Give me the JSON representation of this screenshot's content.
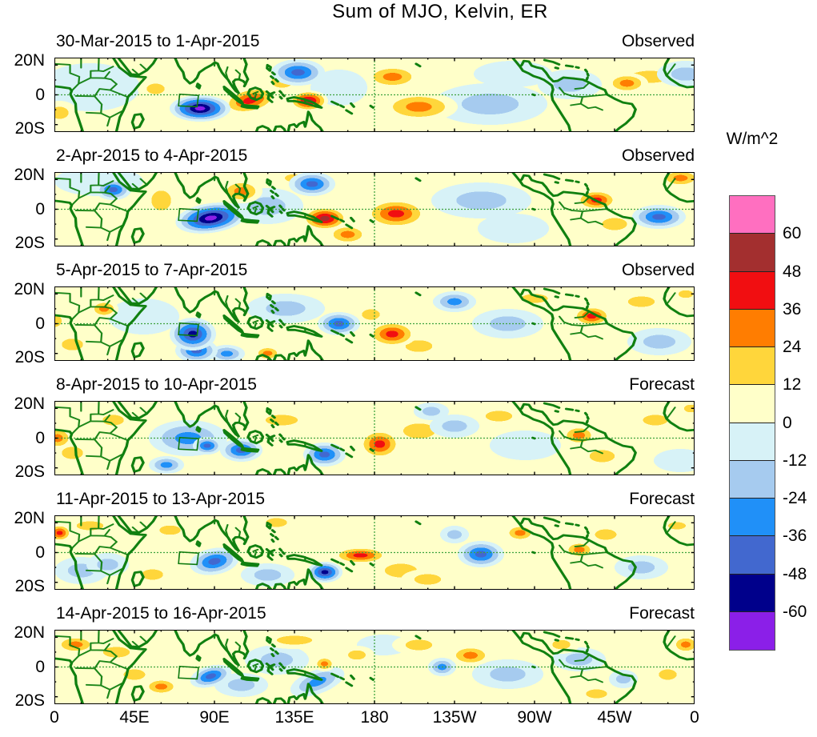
{
  "title": "Sum of MJO, Kelvin, ER",
  "colorbar": {
    "title": "W/m^2",
    "segment_colors": [
      "#FF6FC0",
      "#A32F2F",
      "#F10E11",
      "#FF7D01",
      "#FFD63B",
      "#FFFFC9",
      "#D7F2F7",
      "#A6CBEF",
      "#2090F8",
      "#4268CF",
      "#00008B",
      "#8B1FE8"
    ]
  },
  "colors": {
    "background": "#FFFFFF",
    "map_base": "#FFFFC9",
    "coastline": "#108010",
    "grid_green": "#3FA33F",
    "frame": "#000000",
    "positive_bands": [
      "#FFFFC9",
      "#FFD63B",
      "#FF7D01",
      "#F10E11",
      "#A32F2F",
      "#FF6FC0"
    ],
    "negative_bands": [
      "#D7F2F7",
      "#A6CBEF",
      "#2090F8",
      "#4268CF",
      "#00008B",
      "#8B1FE8"
    ]
  },
  "region_box": {
    "lon_min": 70.4,
    "lon_max": 81,
    "lat_min": -8,
    "lat_max": 0.4
  },
  "chart_data": {
    "type": "heatmap",
    "title": "Sum of MJO, Kelvin, ER",
    "units": "W/m^2",
    "contour_interval": 12,
    "value_range": [
      -60,
      60
    ],
    "colorbar_ticks": [
      "60",
      "48",
      "36",
      "24",
      "12",
      "0",
      "-12",
      "-24",
      "-36",
      "-48",
      "-60"
    ],
    "lon_domain": [
      0,
      360
    ],
    "lat_domain": [
      -25,
      25
    ],
    "x_tick_labels": [
      "0",
      "45E",
      "90E",
      "135E",
      "180",
      "135W",
      "90W",
      "45W",
      "0"
    ],
    "y_tick_labels": [
      "20N",
      "0",
      "20S"
    ],
    "equator_dashed": true,
    "dateline_dashed": true,
    "anomaly_fields": [
      "lon_deg_east",
      "lat_deg",
      "peak_wm2",
      "rx_deg",
      "ry_deg",
      "rotation_deg"
    ],
    "panels": [
      {
        "date_range": "30-Mar-2015 to 1-Apr-2015",
        "source": "Observed",
        "anomalies": [
          [
            20,
            5,
            -10,
            28,
            16,
            0
          ],
          [
            245,
            -6,
            -13,
            32,
            14,
            0
          ],
          [
            258,
            14,
            -10,
            22,
            9,
            0
          ],
          [
            160,
            5,
            -12,
            16,
            12,
            0
          ],
          [
            335,
            12,
            18,
            22,
            8,
            0
          ],
          [
            3,
            -12,
            16,
            10,
            8,
            0
          ],
          [
            57,
            4,
            15,
            10,
            7,
            0
          ],
          [
            128,
            9,
            20,
            12,
            8,
            0
          ],
          [
            190,
            12,
            30,
            16,
            8,
            0
          ],
          [
            205,
            -8,
            33,
            22,
            10,
            0
          ],
          [
            290,
            7,
            -17,
            18,
            10,
            0
          ],
          [
            355,
            14,
            -21,
            16,
            9,
            0
          ],
          [
            322,
            8,
            30,
            12,
            7,
            0
          ],
          [
            137,
            15,
            -45,
            15,
            9,
            0
          ],
          [
            110,
            -4,
            40,
            16,
            9,
            -12
          ],
          [
            82,
            -9,
            -68,
            17,
            9,
            0
          ],
          [
            143,
            -4,
            56,
            11,
            7,
            0
          ]
        ]
      },
      {
        "date_range": "2-Apr-2015 to 4-Apr-2015",
        "source": "Observed",
        "anomalies": [
          [
            25,
            19,
            -10,
            25,
            10,
            0
          ],
          [
            120,
            2,
            -18,
            20,
            12,
            0
          ],
          [
            240,
            6,
            -13,
            28,
            12,
            0
          ],
          [
            258,
            -13,
            -11,
            20,
            10,
            0
          ],
          [
            60,
            6,
            20,
            11,
            13,
            0
          ],
          [
            135,
            21,
            18,
            11,
            5,
            0
          ],
          [
            105,
            12,
            25,
            12,
            8,
            0
          ],
          [
            165,
            -17,
            28,
            12,
            7,
            0
          ],
          [
            315,
            -10,
            20,
            14,
            8,
            0
          ],
          [
            352,
            21,
            26,
            12,
            6,
            0
          ],
          [
            33,
            13,
            -38,
            10,
            7,
            0
          ],
          [
            145,
            17,
            -40,
            13,
            8,
            0
          ],
          [
            192,
            -3,
            38,
            18,
            10,
            0
          ],
          [
            340,
            -5,
            -40,
            15,
            8,
            0
          ],
          [
            305,
            6,
            42,
            12,
            7,
            0
          ],
          [
            88,
            -6,
            -70,
            20,
            10,
            -8
          ],
          [
            152,
            -6,
            52,
            13,
            8,
            0
          ]
        ]
      },
      {
        "date_range": "5-Apr-2015 to 7-Apr-2015",
        "source": "Observed",
        "anomalies": [
          [
            50,
            5,
            -12,
            20,
            12,
            0
          ],
          [
            130,
            10,
            -13,
            22,
            10,
            0
          ],
          [
            255,
            0,
            -14,
            20,
            10,
            0
          ],
          [
            340,
            -12,
            -16,
            18,
            9,
            0
          ],
          [
            10,
            -14,
            18,
            12,
            8,
            0
          ],
          [
            0,
            2,
            14,
            8,
            8,
            0
          ],
          [
            270,
            17,
            16,
            15,
            6,
            0
          ],
          [
            330,
            15,
            18,
            15,
            7,
            0
          ],
          [
            355,
            20,
            16,
            8,
            5,
            0
          ],
          [
            205,
            -15,
            18,
            15,
            8,
            0
          ],
          [
            178,
            6,
            24,
            10,
            7,
            0
          ],
          [
            28,
            10,
            26,
            8,
            6,
            0
          ],
          [
            120,
            -20,
            26,
            8,
            5,
            0
          ],
          [
            225,
            15,
            -28,
            12,
            7,
            0
          ],
          [
            97,
            -20,
            -30,
            10,
            6,
            0
          ],
          [
            80,
            -18,
            -38,
            12,
            8,
            0
          ],
          [
            160,
            0,
            -38,
            12,
            8,
            0
          ],
          [
            78,
            -7,
            -50,
            13,
            11,
            0
          ],
          [
            302,
            5,
            38,
            11,
            7,
            0
          ],
          [
            190,
            -7,
            42,
            14,
            9,
            0
          ]
        ]
      },
      {
        "date_range": "8-Apr-2015 to 10-Apr-2015",
        "source": "Forecast",
        "anomalies": [
          [
            75,
            0,
            -30,
            22,
            12,
            0
          ],
          [
            265,
            -5,
            -12,
            20,
            10,
            0
          ],
          [
            352,
            -15,
            -12,
            15,
            8,
            0
          ],
          [
            10,
            -10,
            18,
            12,
            8,
            0
          ],
          [
            33,
            12,
            20,
            12,
            7,
            0
          ],
          [
            128,
            12,
            20,
            18,
            7,
            0
          ],
          [
            205,
            5,
            20,
            18,
            10,
            0
          ],
          [
            250,
            15,
            16,
            15,
            7,
            0
          ],
          [
            308,
            -12,
            18,
            14,
            8,
            0
          ],
          [
            338,
            12,
            18,
            14,
            7,
            0
          ],
          [
            358,
            20,
            16,
            8,
            5,
            0
          ],
          [
            212,
            18,
            -16,
            10,
            6,
            0
          ],
          [
            225,
            8,
            -20,
            14,
            8,
            0
          ],
          [
            63,
            -18,
            -28,
            10,
            6,
            0
          ],
          [
            86,
            -5,
            -44,
            8,
            6,
            0
          ],
          [
            105,
            -8,
            -40,
            12,
            8,
            0
          ],
          [
            152,
            -11,
            -48,
            12,
            8,
            0
          ],
          [
            2,
            0,
            34,
            9,
            8,
            0
          ],
          [
            295,
            2,
            36,
            10,
            7,
            0
          ],
          [
            183,
            -4,
            40,
            12,
            10,
            0
          ]
        ]
      },
      {
        "date_range": "11-Apr-2015 to 13-Apr-2015",
        "source": "Forecast",
        "anomalies": [
          [
            15,
            -12,
            -14,
            15,
            9,
            0
          ],
          [
            30,
            -8,
            -14,
            12,
            8,
            0
          ],
          [
            120,
            -15,
            -16,
            15,
            8,
            0
          ],
          [
            330,
            -10,
            -14,
            15,
            8,
            0
          ],
          [
            20,
            18,
            20,
            15,
            6,
            0
          ],
          [
            65,
            15,
            16,
            12,
            6,
            0
          ],
          [
            55,
            -15,
            16,
            12,
            7,
            0
          ],
          [
            125,
            20,
            20,
            12,
            6,
            0
          ],
          [
            195,
            -12,
            22,
            18,
            9,
            0
          ],
          [
            210,
            -18,
            18,
            15,
            7,
            0
          ],
          [
            310,
            12,
            20,
            12,
            7,
            0
          ],
          [
            350,
            18,
            16,
            10,
            5,
            0
          ],
          [
            262,
            13,
            30,
            9,
            6,
            0
          ],
          [
            225,
            12,
            -24,
            8,
            6,
            0
          ],
          [
            295,
            2,
            30,
            9,
            6,
            0
          ],
          [
            90,
            -6,
            -46,
            14,
            9,
            -10
          ],
          [
            240,
            -1,
            -42,
            13,
            9,
            0
          ],
          [
            172,
            -2,
            40,
            16,
            6,
            0
          ],
          [
            152,
            -13,
            -58,
            10,
            7,
            0
          ],
          [
            3,
            13,
            38,
            7,
            6,
            0
          ]
        ]
      },
      {
        "date_range": "14-Apr-2015 to 16-Apr-2015",
        "source": "Forecast",
        "anomalies": [
          [
            125,
            5,
            -14,
            18,
            10,
            0
          ],
          [
            255,
            -5,
            -14,
            20,
            10,
            0
          ],
          [
            295,
            5,
            -16,
            15,
            8,
            0
          ],
          [
            105,
            -12,
            -20,
            15,
            8,
            0
          ],
          [
            185,
            15,
            -12,
            15,
            7,
            0
          ],
          [
            35,
            10,
            18,
            15,
            7,
            0
          ],
          [
            45,
            -5,
            16,
            12,
            7,
            0
          ],
          [
            135,
            18,
            20,
            20,
            6,
            0
          ],
          [
            170,
            8,
            18,
            10,
            6,
            0
          ],
          [
            205,
            15,
            20,
            15,
            7,
            0
          ],
          [
            285,
            15,
            18,
            10,
            6,
            0
          ],
          [
            305,
            -18,
            20,
            12,
            6,
            0
          ],
          [
            345,
            -5,
            16,
            10,
            7,
            0
          ],
          [
            218,
            0,
            -26,
            8,
            6,
            0
          ],
          [
            320,
            -8,
            -24,
            8,
            6,
            0
          ],
          [
            148,
            -10,
            -34,
            16,
            8,
            -20
          ],
          [
            88,
            -6,
            -44,
            12,
            7,
            -15
          ],
          [
            152,
            2,
            26,
            6,
            5,
            0
          ],
          [
            60,
            -13,
            30,
            10,
            6,
            0
          ],
          [
            234,
            8,
            34,
            12,
            7,
            0
          ],
          [
            12,
            15,
            36,
            12,
            6,
            0
          ],
          [
            355,
            15,
            30,
            8,
            6,
            0
          ]
        ]
      }
    ]
  }
}
